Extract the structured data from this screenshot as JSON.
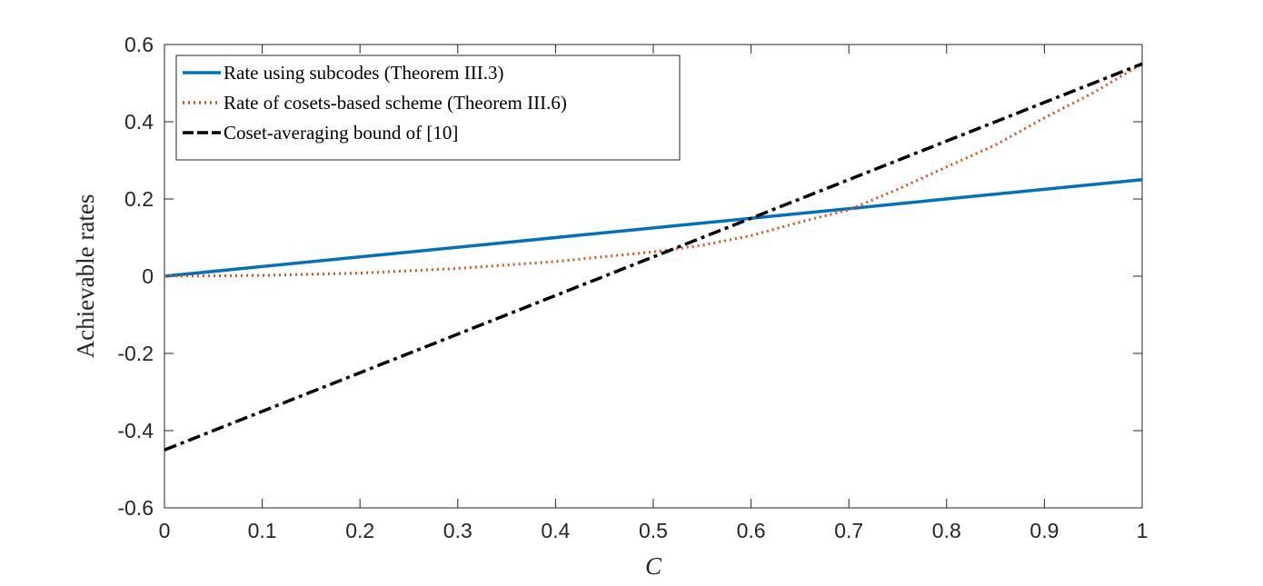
{
  "chart_data": {
    "type": "line",
    "title": "",
    "xlabel": "C",
    "ylabel": "Achievable rates",
    "xlim": [
      0,
      1
    ],
    "ylim": [
      -0.6,
      0.6
    ],
    "xticks": [
      "0",
      "0.1",
      "0.2",
      "0.3",
      "0.4",
      "0.5",
      "0.6",
      "0.7",
      "0.8",
      "0.9",
      "1"
    ],
    "yticks": [
      "-0.6",
      "-0.4",
      "-0.2",
      "0",
      "0.2",
      "0.4",
      "0.6"
    ],
    "grid": false,
    "legend_position": "top-left",
    "series": [
      {
        "name": "Rate using subcodes (Theorem III.3)",
        "color": "#0072BD",
        "style": "solid",
        "x": [
          0,
          1
        ],
        "y": [
          0,
          0.25
        ]
      },
      {
        "name": "Rate of cosets-based scheme (Theorem III.6)",
        "color": "#D95319",
        "style": "dotted",
        "x": [
          0,
          0.1,
          0.2,
          0.3,
          0.4,
          0.5,
          0.55,
          0.6,
          0.65,
          0.7,
          0.75,
          0.8,
          0.85,
          0.9,
          0.95,
          1
        ],
        "y": [
          0,
          0.002,
          0.008,
          0.02,
          0.038,
          0.063,
          0.08,
          0.105,
          0.14,
          0.172,
          0.225,
          0.283,
          0.34,
          0.41,
          0.475,
          0.55
        ]
      },
      {
        "name": "Coset-averaging bound of [10]",
        "color": "#000000",
        "style": "dashdot",
        "x": [
          0,
          1
        ],
        "y": [
          -0.45,
          0.55
        ]
      }
    ]
  }
}
